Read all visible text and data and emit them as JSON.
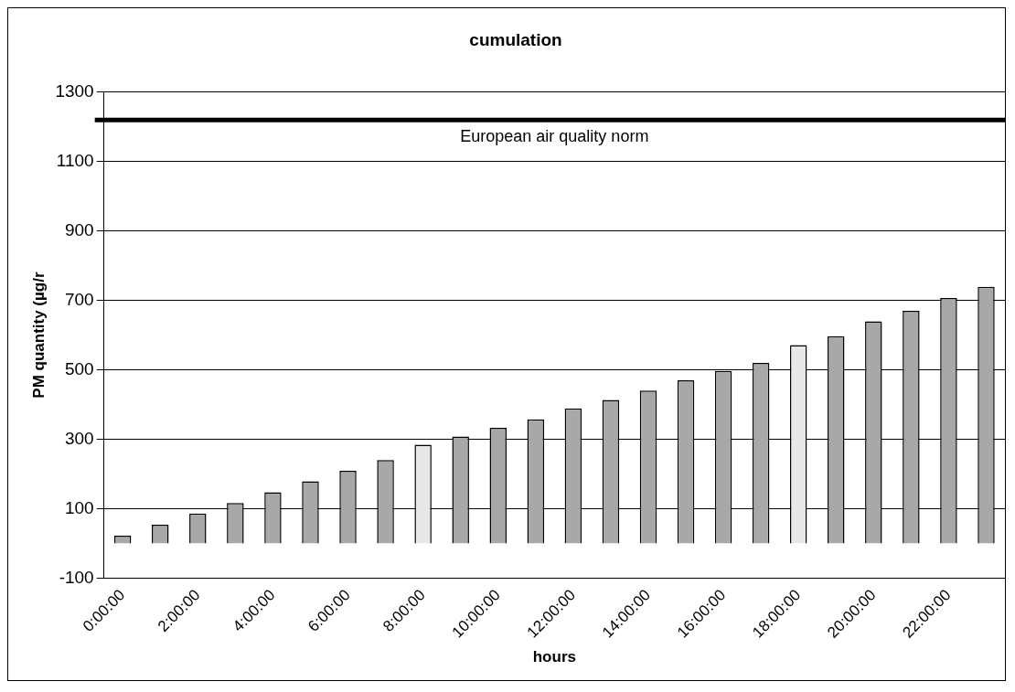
{
  "chart_data": {
    "type": "bar",
    "title": "cumulation",
    "xlabel": "hours",
    "ylabel": "PM quantity (µg/r",
    "categories": [
      "0:00:00",
      null,
      "2:00:00",
      null,
      "4:00:00",
      null,
      "6:00:00",
      null,
      "8:00:00",
      null,
      "10:00:00",
      null,
      "12:00:00",
      null,
      "14:00:00",
      null,
      "16:00:00",
      null,
      "18:00:00",
      null,
      "20:00:00",
      null,
      "22:00:00",
      null
    ],
    "values": [
      22,
      54,
      86,
      116,
      147,
      179,
      209,
      240,
      284,
      308,
      333,
      357,
      389,
      413,
      440,
      470,
      497,
      520,
      571,
      597,
      640,
      670,
      707,
      739
    ],
    "colors": [
      "#a8a8a8",
      "#a8a8a8",
      "#a8a8a8",
      "#a8a8a8",
      "#a8a8a8",
      "#a8a8a8",
      "#a8a8a8",
      "#a8a8a8",
      "#e8e8e8",
      "#a8a8a8",
      "#a8a8a8",
      "#a8a8a8",
      "#a8a8a8",
      "#a8a8a8",
      "#a8a8a8",
      "#a8a8a8",
      "#a8a8a8",
      "#a8a8a8",
      "#e8e8e8",
      "#a8a8a8",
      "#a8a8a8",
      "#a8a8a8",
      "#a8a8a8",
      "#a8a8a8"
    ],
    "ylim": [
      -100,
      1300
    ],
    "yticks": [
      -100,
      100,
      300,
      500,
      700,
      900,
      1100,
      1300
    ],
    "grid": "y",
    "ref_lines": [
      {
        "axis": "y",
        "value": 1220,
        "label": "European air quality norm",
        "color": "#000000"
      }
    ]
  }
}
